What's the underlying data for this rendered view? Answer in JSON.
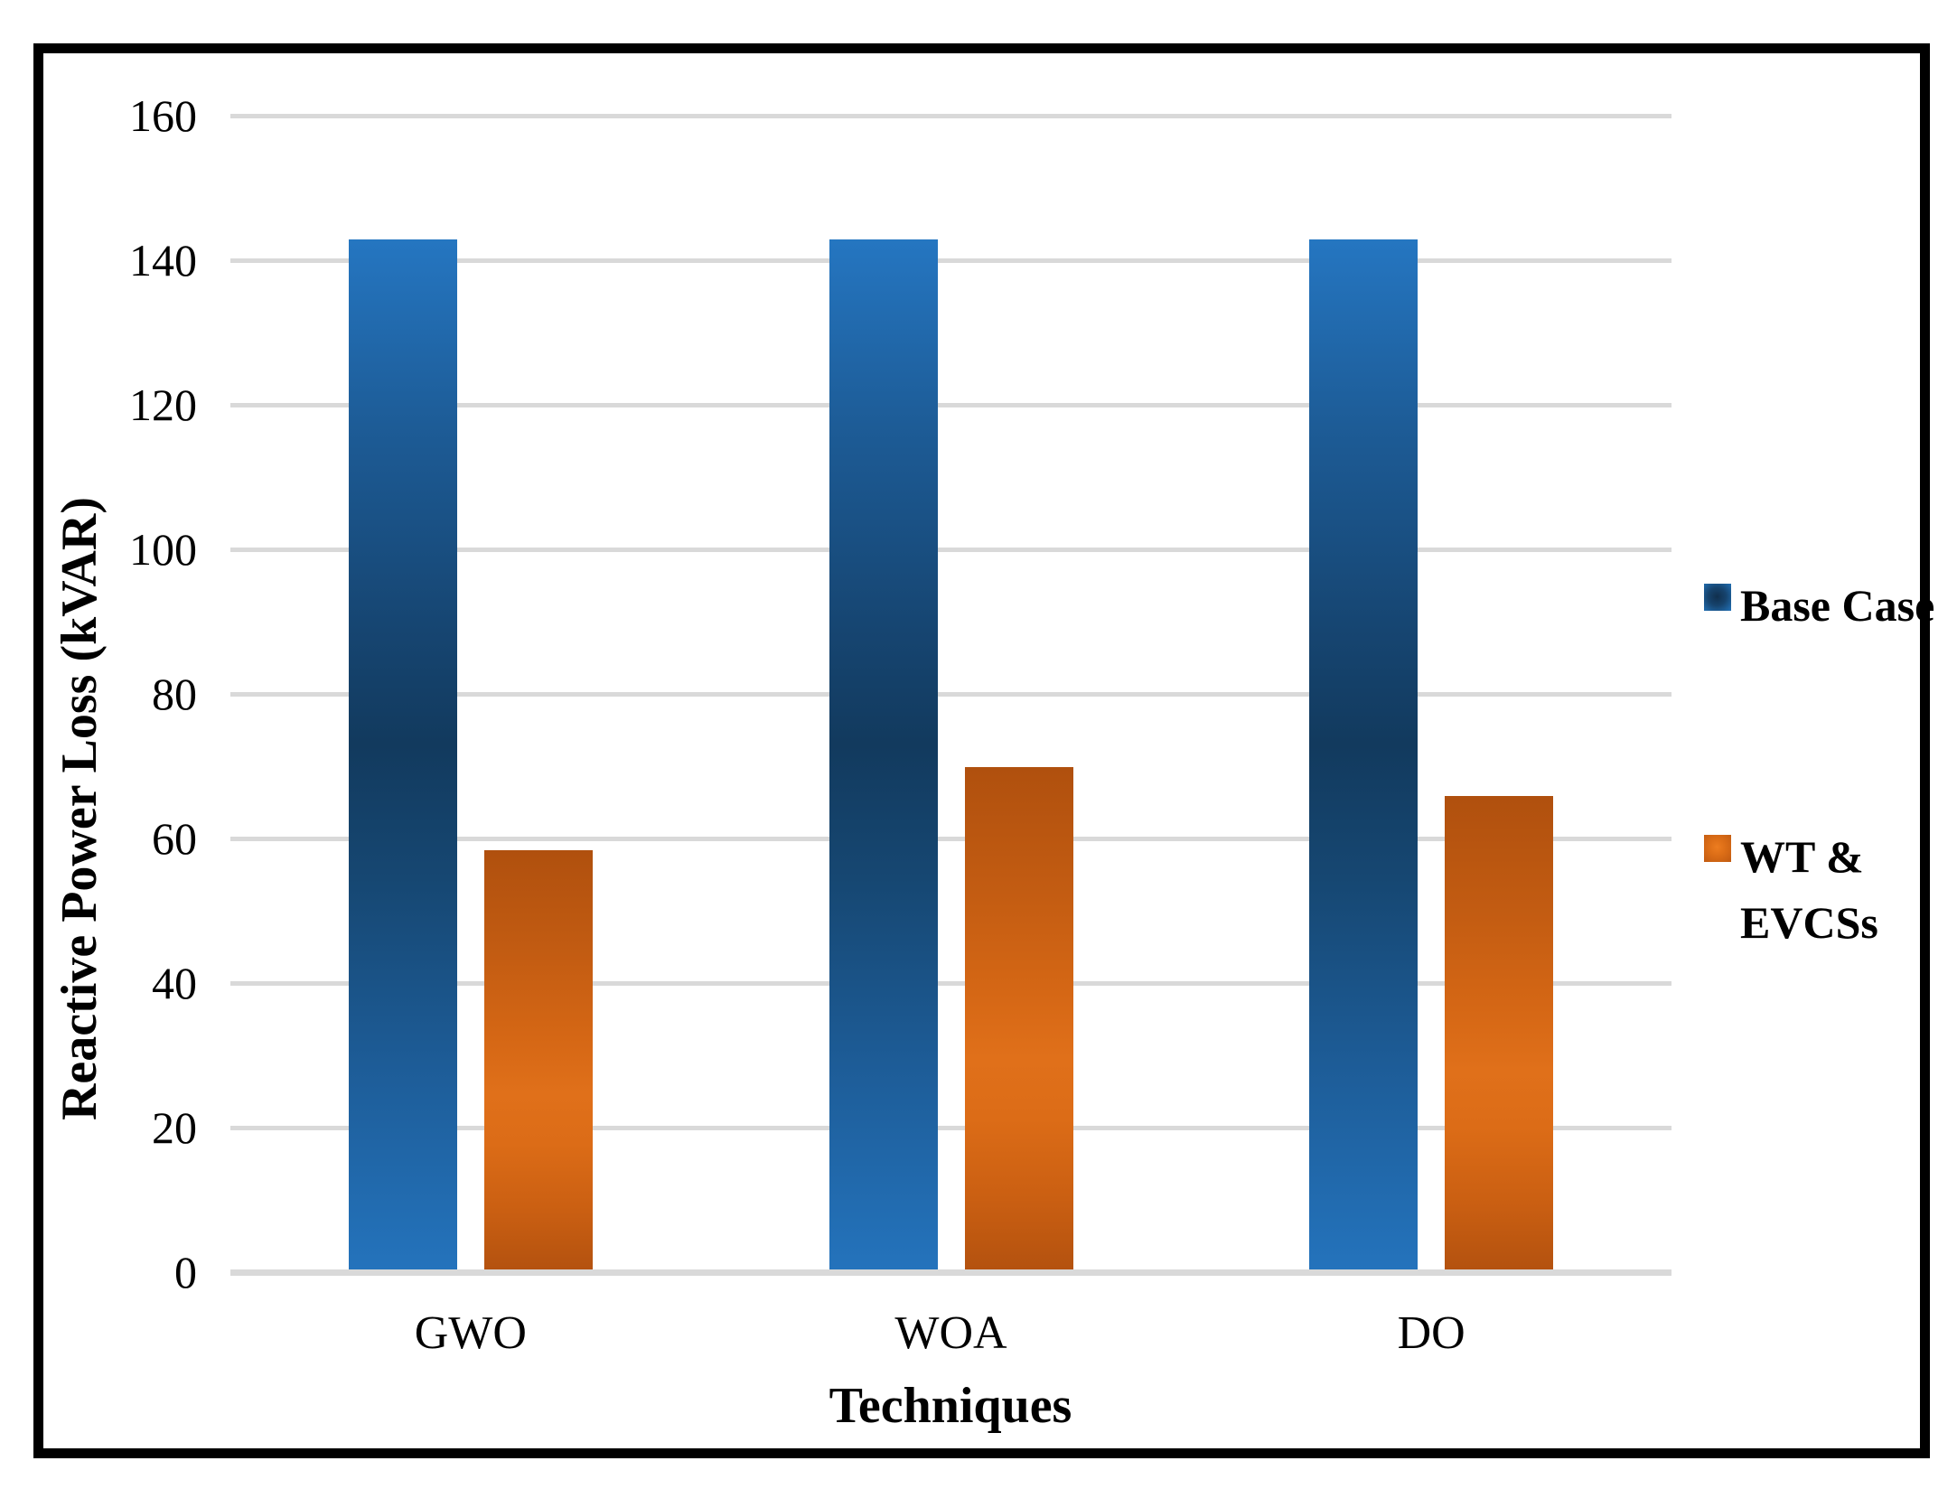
{
  "chart_data": {
    "type": "bar",
    "title": "",
    "categories": [
      "GWO",
      "WOA",
      "DO"
    ],
    "series": [
      {
        "name": "Base Case",
        "values": [
          142.5,
          142.5,
          142.5
        ],
        "color": "#2272B8"
      },
      {
        "name": "WT & EVCSs",
        "values": [
          58,
          69.5,
          65.5
        ],
        "color": "#C55A11"
      }
    ],
    "xlabel": "Techniques",
    "ylabel": "Reactive Power Loss (kVAR)",
    "ylim": [
      0,
      160
    ],
    "ytick_step": 20,
    "yticks": [
      "0",
      "20",
      "40",
      "60",
      "80",
      "100",
      "120",
      "140",
      "160"
    ],
    "grid": true,
    "gridline_color": "#D9D9D9",
    "legend_position": "right"
  }
}
